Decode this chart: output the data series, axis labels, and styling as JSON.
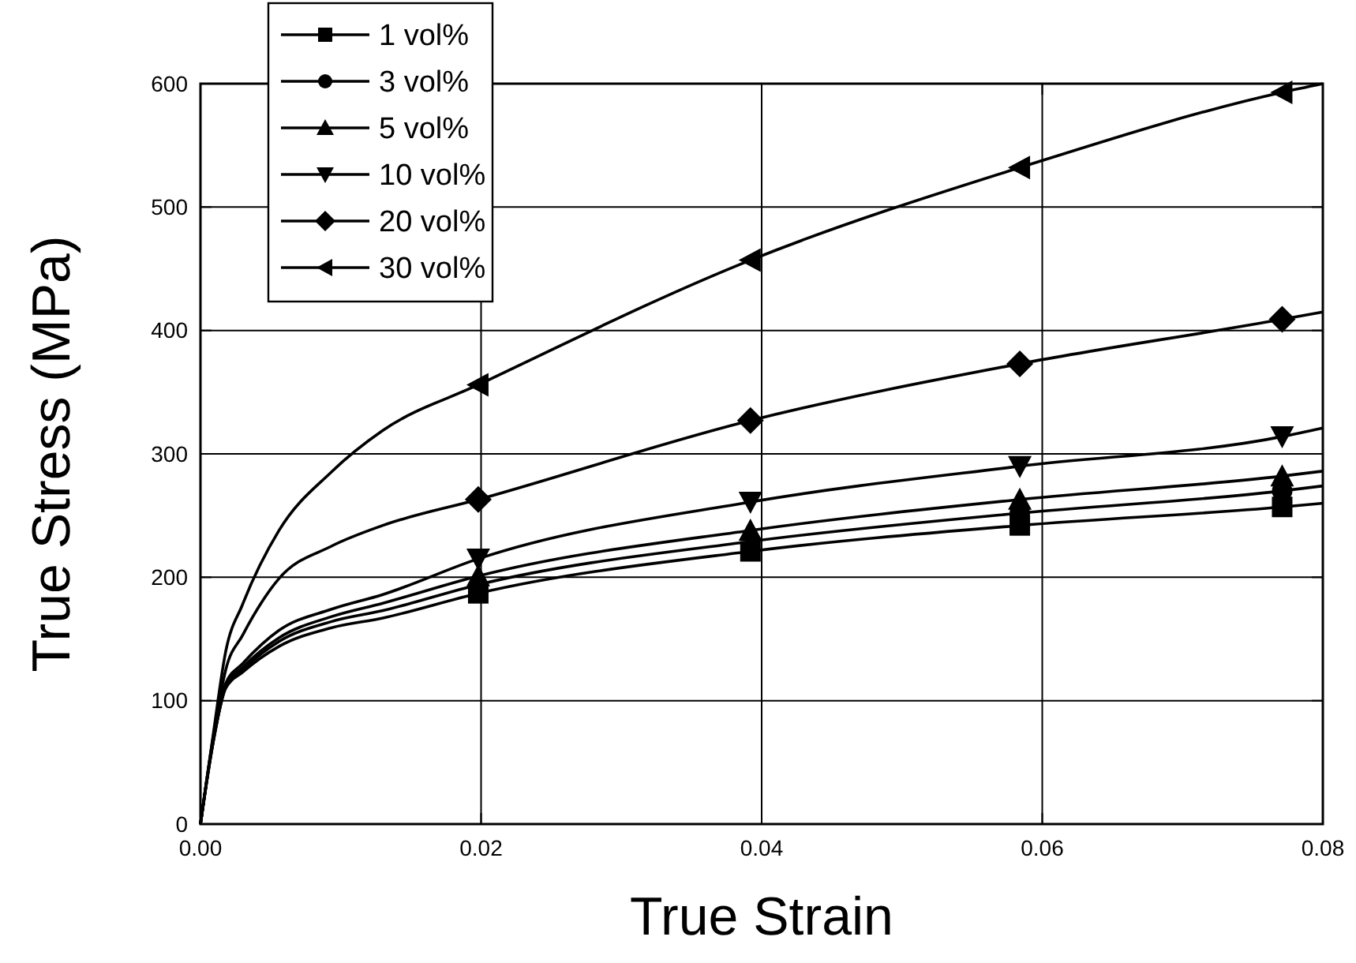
{
  "chart_data": {
    "type": "line",
    "xlabel": "True Strain",
    "ylabel": "True Stress (MPa)",
    "xlim": [
      0,
      0.08
    ],
    "xticks": [
      {
        "value": 0,
        "label": "0.00"
      },
      {
        "value": 0.02,
        "label": "0.02"
      },
      {
        "value": 0.04,
        "label": "0.04"
      },
      {
        "value": 0.06,
        "label": "0.06"
      },
      {
        "value": 0.08,
        "label": "0.08"
      }
    ],
    "ylim": [
      0,
      600
    ],
    "yticks": [
      0,
      100,
      200,
      300,
      400,
      500,
      600
    ],
    "grid": true,
    "legend": "top left",
    "series": [
      {
        "type": "line",
        "marker": "none",
        "color": "#000000",
        "x": [
          0,
          0.0009,
          0.0018,
          0.003,
          0.0056,
          0.0093,
          0.013,
          0.0198,
          0.0392,
          0.0584,
          0.0771,
          0.08
        ],
        "values": [
          0,
          66,
          110,
          123,
          144,
          159,
          167,
          187,
          221,
          242,
          257,
          260
        ]
      },
      {
        "type": "line",
        "marker": "none",
        "color": "#000000",
        "x": [
          0,
          0.0009,
          0.0018,
          0.003,
          0.0056,
          0.0093,
          0.013,
          0.0198,
          0.0392,
          0.0584,
          0.0771,
          0.08
        ],
        "values": [
          0,
          66,
          111,
          125,
          148,
          164,
          173,
          194,
          229,
          252,
          270,
          274
        ]
      },
      {
        "type": "line",
        "marker": "none",
        "color": "#000000",
        "x": [
          0,
          0.0009,
          0.0018,
          0.003,
          0.0056,
          0.0093,
          0.013,
          0.0198,
          0.0392,
          0.0584,
          0.0771,
          0.08
        ],
        "values": [
          0,
          67,
          112,
          127,
          151,
          168,
          179,
          201,
          238,
          263,
          282,
          286
        ]
      },
      {
        "type": "line",
        "marker": "none",
        "color": "#000000",
        "x": [
          0,
          0.0009,
          0.0018,
          0.003,
          0.0056,
          0.0093,
          0.013,
          0.0198,
          0.0392,
          0.0584,
          0.0771,
          0.08
        ],
        "values": [
          0,
          68,
          114,
          130,
          157,
          174,
          186,
          215,
          261,
          290,
          314,
          321
        ]
      },
      {
        "type": "line",
        "marker": "none",
        "color": "#000000",
        "x": [
          0,
          0.0009,
          0.0018,
          0.003,
          0.0056,
          0.0093,
          0.013,
          0.0198,
          0.0392,
          0.0584,
          0.0771,
          0.08
        ],
        "values": [
          0,
          70,
          125,
          153,
          199,
          225,
          242,
          263,
          327,
          373,
          409,
          415
        ]
      },
      {
        "type": "line",
        "marker": "none",
        "color": "#000000",
        "x": [
          0,
          0.0009,
          0.0018,
          0.003,
          0.0056,
          0.0093,
          0.013,
          0.0198,
          0.0392,
          0.0584,
          0.0771,
          0.08
        ],
        "values": [
          0,
          72,
          140,
          178,
          238,
          285,
          319,
          356,
          457,
          532,
          593,
          600
        ]
      },
      {
        "type": "scatter",
        "name": "1 vol%",
        "marker": "square",
        "color": "#000000",
        "x": [
          0.0198,
          0.0392,
          0.0584,
          0.0771
        ],
        "values": [
          187,
          221,
          242,
          257
        ]
      },
      {
        "type": "scatter",
        "name": "3 vol%",
        "marker": "circle",
        "color": "#000000",
        "x": [
          0.0584,
          0.0771
        ],
        "values": [
          252,
          270
        ]
      },
      {
        "type": "scatter",
        "name": "5 vol%",
        "marker": "triangle",
        "color": "#000000",
        "x": [
          0.0198,
          0.0392,
          0.0584,
          0.0771
        ],
        "values": [
          201,
          238,
          263,
          282
        ]
      },
      {
        "type": "scatter",
        "name": "10 vol%",
        "marker": "triangle-down",
        "color": "#000000",
        "x": [
          0.0198,
          0.0392,
          0.0584,
          0.0771
        ],
        "values": [
          215,
          261,
          290,
          314
        ]
      },
      {
        "type": "scatter",
        "name": "20 vol%",
        "marker": "diamond",
        "color": "#000000",
        "x": [
          0.0198,
          0.0392,
          0.0584,
          0.0771
        ],
        "values": [
          263,
          327,
          373,
          409
        ]
      },
      {
        "type": "scatter",
        "name": "30 vol%",
        "marker": "triangle-left",
        "color": "#000000",
        "x": [
          0.0198,
          0.0392,
          0.0584,
          0.0771
        ],
        "values": [
          356,
          457,
          532,
          593
        ]
      }
    ]
  }
}
